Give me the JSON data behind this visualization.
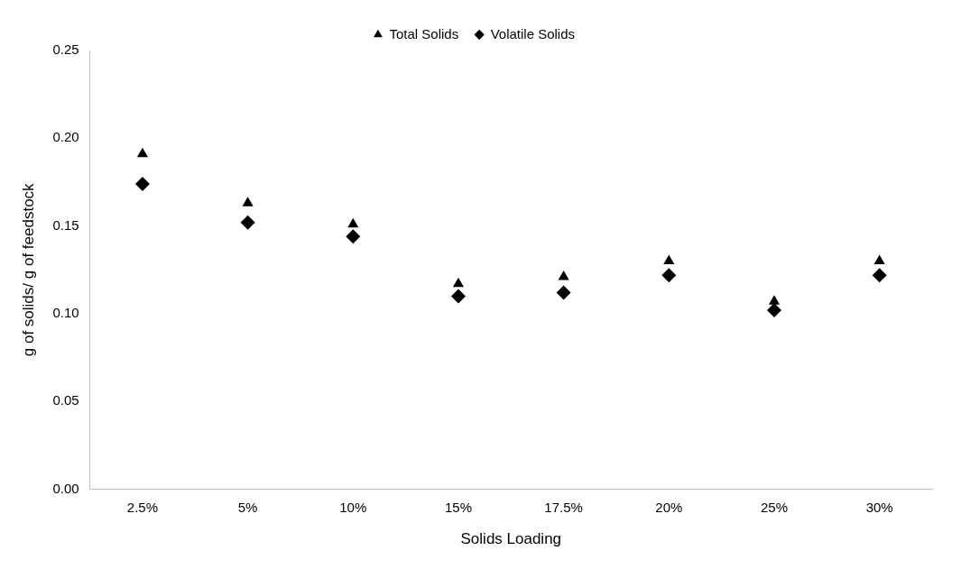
{
  "chart_data": {
    "type": "scatter",
    "xlabel": "Solids Loading",
    "ylabel": "g of solids/ g of feedstock",
    "categories": [
      "2.5%",
      "5%",
      "10%",
      "15%",
      "17.5%",
      "20%",
      "25%",
      "30%"
    ],
    "series": [
      {
        "name": "Total Solids",
        "color": "#000000",
        "marker": "triangle",
        "values": [
          0.191,
          0.163,
          0.151,
          0.117,
          0.121,
          0.13,
          0.107,
          0.13
        ]
      },
      {
        "name": "Volatile Solids",
        "color": "#000000",
        "marker": "diamond",
        "values": [
          0.174,
          0.152,
          0.144,
          0.11,
          0.112,
          0.122,
          0.102,
          0.122
        ]
      }
    ],
    "ylim": [
      0,
      0.25
    ],
    "yticks": [
      {
        "value": 0,
        "label": "0.00"
      },
      {
        "value": 0.05,
        "label": "0.05"
      },
      {
        "value": 0.1,
        "label": "0.10"
      },
      {
        "value": 0.15,
        "label": "0.15"
      },
      {
        "value": 0.2,
        "label": "0.20"
      },
      {
        "value": 0.25,
        "label": "0.25"
      }
    ],
    "grid": false,
    "legend": "top"
  }
}
